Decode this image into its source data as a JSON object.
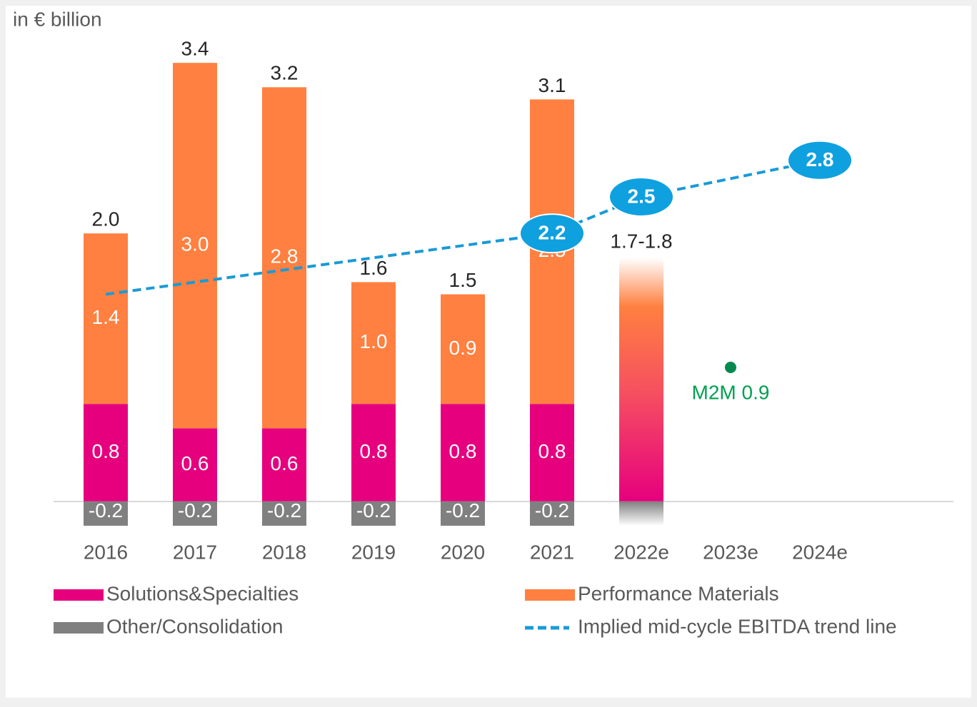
{
  "chart_data": {
    "type": "stacked_bar",
    "unit_label": "in € billion",
    "categories": [
      "2016",
      "2017",
      "2018",
      "2019",
      "2020",
      "2021",
      "2022e",
      "2023e",
      "2024e"
    ],
    "series": [
      {
        "name": "Solutions&Specialties",
        "color": "#e6007e",
        "values": [
          0.8,
          0.6,
          0.6,
          0.8,
          0.8,
          0.8,
          null,
          null,
          null
        ],
        "value_labels": [
          "0.8",
          "0.6",
          "0.6",
          "0.8",
          "0.8",
          "0.8",
          null,
          null,
          null
        ]
      },
      {
        "name": "Performance Materials",
        "color": "#ff8040",
        "values": [
          1.4,
          3.0,
          2.8,
          1.0,
          0.9,
          2.5,
          null,
          null,
          null
        ],
        "value_labels": [
          "1.4",
          "3.0",
          "2.8",
          "1.0",
          "0.9",
          "2.5",
          null,
          null,
          null
        ]
      },
      {
        "name": "Other/Consolidation",
        "color": "#808080",
        "values": [
          -0.2,
          -0.2,
          -0.2,
          -0.2,
          -0.2,
          -0.2,
          null,
          null,
          null
        ],
        "value_labels": [
          "-0.2",
          "-0.2",
          "-0.2",
          "-0.2",
          "-0.2",
          "-0.2",
          null,
          null,
          null
        ]
      }
    ],
    "totals": [
      2.0,
      3.4,
      3.2,
      1.6,
      1.5,
      3.1,
      null,
      null,
      null
    ],
    "total_labels": [
      "2.0",
      "3.4",
      "3.2",
      "1.6",
      "1.5",
      "3.1",
      null,
      null,
      null
    ],
    "estimate": {
      "category": "2022e",
      "label": "1.7-1.8",
      "range": [
        1.7,
        1.8
      ],
      "other": -0.2
    },
    "trend": {
      "name": "Implied mid-cycle EBITDA trend line",
      "color": "#1a9ad6",
      "values": [
        1.7,
        null,
        null,
        null,
        null,
        2.2,
        2.5,
        null,
        2.8
      ],
      "value_labels": [
        null,
        null,
        null,
        null,
        null,
        "2.2",
        "2.5",
        null,
        "2.8"
      ]
    },
    "point": {
      "category": "2023e",
      "value": 1.1,
      "label": "M2M 0.9",
      "color": "#00a050"
    },
    "ylim": [
      -0.3,
      3.8
    ]
  }
}
